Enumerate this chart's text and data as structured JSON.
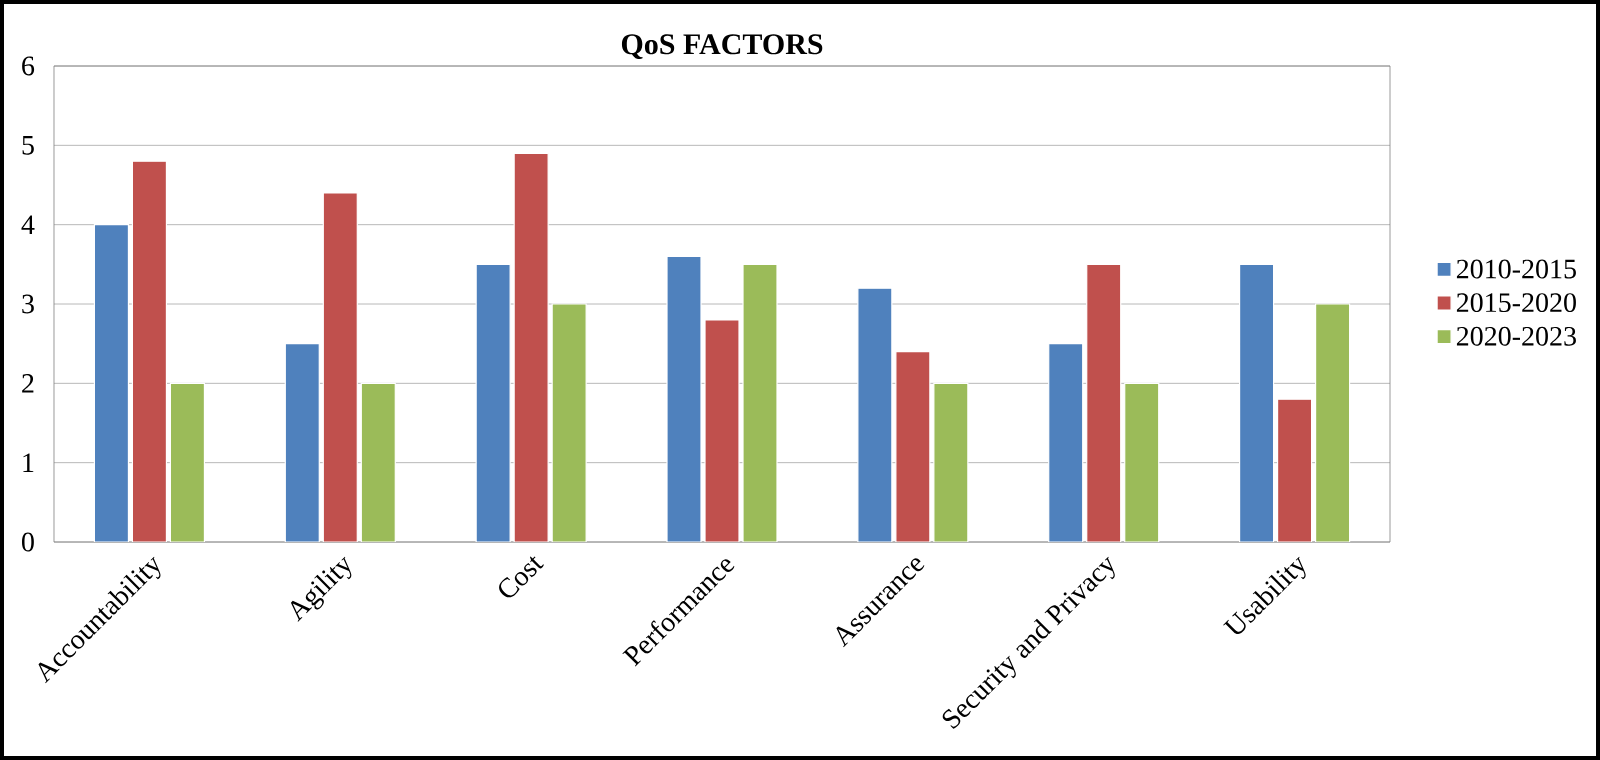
{
  "chart_data": {
    "type": "bar",
    "title": "QoS FACTORS",
    "categories": [
      "Accountability",
      "Agility",
      "Cost",
      "Performance",
      "Assurance",
      "Security and Privacy",
      "Usability"
    ],
    "series": [
      {
        "name": "2010-2015",
        "color": "#4f81bd",
        "values": [
          4.0,
          2.5,
          3.5,
          3.6,
          3.2,
          2.5,
          3.5
        ]
      },
      {
        "name": "2015-2020",
        "color": "#c0504d",
        "values": [
          4.8,
          4.4,
          4.9,
          2.8,
          2.4,
          3.5,
          1.8
        ]
      },
      {
        "name": "2020-2023",
        "color": "#9bbb59",
        "values": [
          2.0,
          2.0,
          3.0,
          3.5,
          2.0,
          2.0,
          3.0
        ]
      }
    ],
    "ylim": [
      0,
      6
    ],
    "yticks": [
      0,
      1,
      2,
      3,
      4,
      5,
      6
    ],
    "grid": "y",
    "legend": "right"
  }
}
